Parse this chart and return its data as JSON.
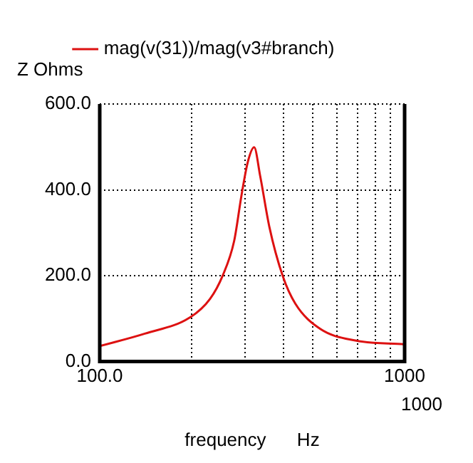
{
  "chart_data": {
    "type": "line",
    "xlabel": "frequency      Hz",
    "ylabel": "Z Ohms",
    "annotations": [
      "1000"
    ],
    "x": [
      100,
      140.6,
      197.9,
      230,
      253,
      276,
      292,
      306,
      321,
      336,
      360,
      398,
      438,
      529,
      689,
      1000
    ],
    "series": [
      {
        "name": "mag(v(31))/mag(v3#branch)",
        "color": "#dd1111",
        "values": [
          36,
          65,
          103,
          146,
          200,
          281,
          389,
          465,
          499,
          432,
          314,
          200,
          135,
          76,
          49,
          40
        ]
      }
    ],
    "xlim": [
      100,
      1000
    ],
    "xticks": [
      {
        "value": 100,
        "label": "100.0"
      },
      {
        "value": 200,
        "label": null
      },
      {
        "value": 300,
        "label": null
      },
      {
        "value": 400,
        "label": null
      },
      {
        "value": 500,
        "label": null
      },
      {
        "value": 600,
        "label": null
      },
      {
        "value": 700,
        "label": null
      },
      {
        "value": 800,
        "label": null
      },
      {
        "value": 900,
        "label": null
      },
      1000
    ],
    "ylim": [
      0,
      600
    ],
    "yticks": [
      {
        "value": 0,
        "label": "0.0"
      },
      {
        "value": 200,
        "label": "200.0"
      },
      {
        "value": 400,
        "label": "400.0"
      },
      {
        "value": 600,
        "label": "600.0"
      }
    ],
    "log": "x",
    "grid": true,
    "legend": "top",
    "marker": "none",
    "line_style": "solid"
  }
}
